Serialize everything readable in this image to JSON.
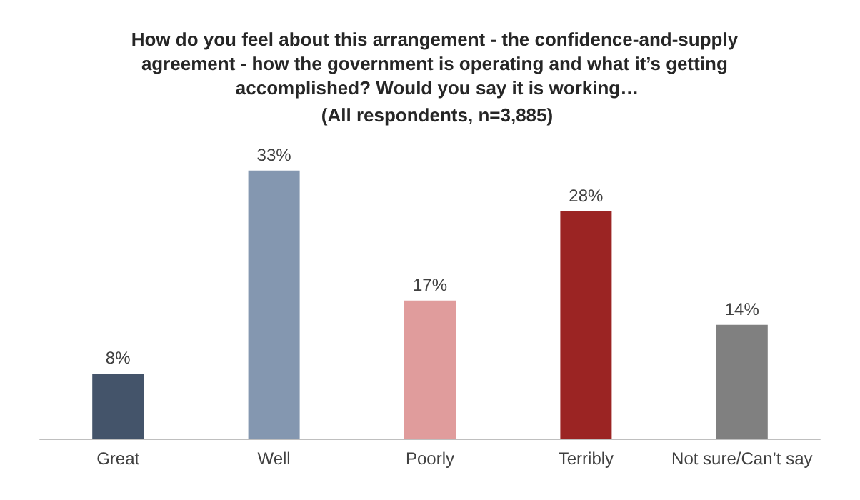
{
  "chart_data": {
    "type": "bar",
    "title": "How do you feel about this arrangement - the confidence-and-supply agreement - how the government is operating and what it’s getting accomplished? Would you say it is working…",
    "subtitle": "(All respondents, n=3,885)",
    "categories": [
      "Great",
      "Well",
      "Poorly",
      "Terribly",
      "Not sure/Can’t say"
    ],
    "values": [
      8,
      33,
      17,
      28,
      14
    ],
    "colors": [
      "#44546a",
      "#8497b0",
      "#e09c9c",
      "#9b2423",
      "#808080"
    ],
    "value_labels": [
      "8%",
      "33%",
      "17%",
      "28%",
      "14%"
    ]
  }
}
